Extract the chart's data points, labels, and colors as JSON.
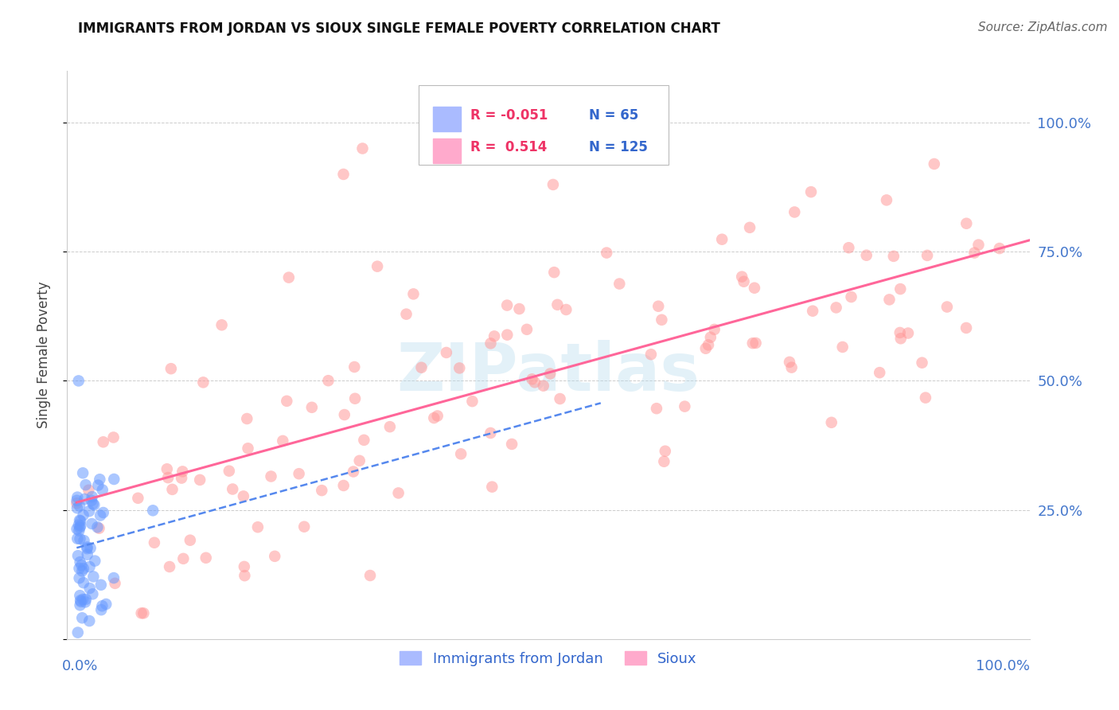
{
  "title": "IMMIGRANTS FROM JORDAN VS SIOUX SINGLE FEMALE POVERTY CORRELATION CHART",
  "source": "Source: ZipAtlas.com",
  "ylabel": "Single Female Poverty",
  "ytick_vals": [
    0.0,
    0.25,
    0.5,
    0.75,
    1.0
  ],
  "ytick_labels": [
    "",
    "25.0%",
    "50.0%",
    "75.0%",
    "100.0%"
  ],
  "xlim": [
    0.0,
    1.0
  ],
  "ylim": [
    0.0,
    1.1
  ],
  "legend_jordan_r": "-0.051",
  "legend_jordan_n": "65",
  "legend_sioux_r": "0.514",
  "legend_sioux_n": "125",
  "color_jordan": "#6699FF",
  "color_sioux": "#FF9999",
  "color_jordan_line": "#5588EE",
  "color_sioux_line": "#FF6699",
  "watermark": "ZIPatlas",
  "title_fontsize": 12,
  "source_fontsize": 11,
  "tick_fontsize": 13
}
